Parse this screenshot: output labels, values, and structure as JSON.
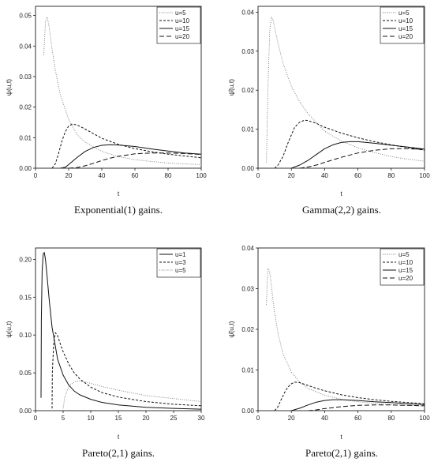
{
  "chart_data": [
    {
      "type": "line",
      "caption": "Exponential(1) gains.",
      "xlabel": "t",
      "ylabel": "ψ(u,t)",
      "xlim": [
        0,
        100
      ],
      "ylim": [
        0,
        0.053
      ],
      "xticks": [
        "0",
        "20",
        "40",
        "60",
        "80",
        "100"
      ],
      "yticks": [
        "0.00",
        "0.01",
        "0.02",
        "0.03",
        "0.04",
        "0.05"
      ],
      "legend": "top-right",
      "series": [
        {
          "name": "u=5",
          "style": "dotted",
          "x": [
            5,
            6,
            7,
            8,
            10,
            12,
            15,
            20,
            25,
            30,
            40,
            50,
            60,
            70,
            80,
            90,
            100
          ],
          "y": [
            0.037,
            0.048,
            0.0495,
            0.047,
            0.039,
            0.032,
            0.024,
            0.016,
            0.011,
            0.0085,
            0.0055,
            0.0038,
            0.0028,
            0.0022,
            0.0017,
            0.0014,
            0.0012
          ]
        },
        {
          "name": "u=10",
          "style": "dashed",
          "x": [
            10,
            12,
            14,
            16,
            18,
            20,
            22,
            25,
            30,
            35,
            40,
            50,
            60,
            70,
            80,
            90,
            100
          ],
          "y": [
            0,
            0.0015,
            0.005,
            0.009,
            0.012,
            0.0138,
            0.0144,
            0.0142,
            0.0128,
            0.0113,
            0.0098,
            0.0078,
            0.0064,
            0.0054,
            0.0046,
            0.004,
            0.0034
          ]
        },
        {
          "name": "u=15",
          "style": "solid",
          "x": [
            15,
            18,
            20,
            25,
            30,
            35,
            40,
            45,
            50,
            60,
            70,
            80,
            90,
            100
          ],
          "y": [
            0,
            0.0003,
            0.0012,
            0.0035,
            0.0055,
            0.0068,
            0.0075,
            0.0077,
            0.0076,
            0.0071,
            0.0063,
            0.0056,
            0.005,
            0.0046
          ]
        },
        {
          "name": "u=20",
          "style": "longdash",
          "x": [
            20,
            25,
            30,
            35,
            40,
            45,
            50,
            60,
            70,
            80,
            90,
            100
          ],
          "y": [
            0,
            0.0002,
            0.0008,
            0.0016,
            0.0025,
            0.0033,
            0.0039,
            0.0047,
            0.005,
            0.005,
            0.0048,
            0.0045
          ]
        }
      ]
    },
    {
      "type": "line",
      "caption": "Gamma(2,2) gains.",
      "xlabel": "t",
      "ylabel": "ψ̂(u,t)",
      "xlim": [
        0,
        100
      ],
      "ylim": [
        0,
        0.0415
      ],
      "xticks": [
        "0",
        "20",
        "40",
        "60",
        "80",
        "100"
      ],
      "yticks": [
        "0.00",
        "0.01",
        "0.02",
        "0.03",
        "0.04"
      ],
      "legend": "top-right",
      "series": [
        {
          "name": "u=5",
          "style": "dotted",
          "x": [
            5,
            6,
            7,
            8,
            9,
            10,
            12,
            15,
            20,
            25,
            30,
            40,
            50,
            60,
            70,
            80,
            90,
            100
          ],
          "y": [
            0.0015,
            0.022,
            0.035,
            0.0388,
            0.038,
            0.036,
            0.032,
            0.027,
            0.021,
            0.017,
            0.014,
            0.0095,
            0.007,
            0.0052,
            0.004,
            0.003,
            0.0023,
            0.0018
          ]
        },
        {
          "name": "u=10",
          "style": "dashed",
          "x": [
            10,
            12,
            15,
            18,
            20,
            22,
            25,
            28,
            30,
            35,
            40,
            50,
            60,
            70,
            80,
            90,
            100
          ],
          "y": [
            0,
            0.0008,
            0.003,
            0.0065,
            0.0085,
            0.0105,
            0.0118,
            0.0123,
            0.0122,
            0.0115,
            0.0105,
            0.009,
            0.0078,
            0.0068,
            0.006,
            0.0053,
            0.0046
          ]
        },
        {
          "name": "u=15",
          "style": "solid",
          "x": [
            20,
            25,
            30,
            35,
            40,
            45,
            50,
            55,
            60,
            70,
            80,
            90,
            100
          ],
          "y": [
            0,
            0.0008,
            0.002,
            0.0035,
            0.005,
            0.006,
            0.0066,
            0.0068,
            0.0068,
            0.0064,
            0.0059,
            0.0054,
            0.0049
          ]
        },
        {
          "name": "u=20",
          "style": "longdash",
          "x": [
            25,
            30,
            35,
            40,
            50,
            60,
            70,
            80,
            90,
            100
          ],
          "y": [
            0,
            0.0003,
            0.0008,
            0.0015,
            0.0028,
            0.0039,
            0.0046,
            0.005,
            0.005,
            0.0048
          ]
        }
      ]
    },
    {
      "type": "line",
      "caption": "Pareto(2,1) gains.",
      "xlabel": "t",
      "ylabel": "ψ(u,t)",
      "xlim": [
        0,
        30
      ],
      "ylim": [
        0,
        0.215
      ],
      "xticks": [
        "0",
        "5",
        "10",
        "15",
        "20",
        "25",
        "30"
      ],
      "yticks": [
        "0.00",
        "0.05",
        "0.10",
        "0.15",
        "0.20"
      ],
      "legend": "top-right",
      "series": [
        {
          "name": "u=1",
          "style": "solid",
          "x": [
            1.0,
            1.05,
            1.2,
            1.4,
            1.6,
            1.8,
            2.0,
            2.5,
            3,
            4,
            5,
            6,
            7,
            8,
            10,
            12,
            15,
            20,
            25,
            30
          ],
          "y": [
            0.017,
            0.12,
            0.185,
            0.207,
            0.209,
            0.2,
            0.185,
            0.145,
            0.11,
            0.068,
            0.047,
            0.034,
            0.026,
            0.021,
            0.015,
            0.011,
            0.0075,
            0.0045,
            0.003,
            0.002
          ]
        },
        {
          "name": "u=3",
          "style": "dashed",
          "x": [
            3.0,
            3.05,
            3.3,
            3.6,
            4,
            4.5,
            5,
            6,
            7,
            8,
            10,
            12,
            15,
            20,
            25,
            30
          ],
          "y": [
            0.003,
            0.05,
            0.09,
            0.103,
            0.099,
            0.088,
            0.078,
            0.062,
            0.05,
            0.042,
            0.031,
            0.024,
            0.018,
            0.012,
            0.0085,
            0.0065
          ]
        },
        {
          "name": "u=5",
          "style": "dotted",
          "x": [
            5.0,
            5.3,
            5.8,
            6.3,
            7,
            7.5,
            8,
            9,
            10,
            12,
            15,
            20,
            25,
            30
          ],
          "y": [
            0.003,
            0.018,
            0.028,
            0.034,
            0.038,
            0.039,
            0.039,
            0.038,
            0.036,
            0.032,
            0.027,
            0.02,
            0.016,
            0.012
          ]
        }
      ]
    },
    {
      "type": "line",
      "caption": "Pareto(2,1) gains.",
      "xlabel": "t",
      "ylabel": "ψ̂(u,t)",
      "xlim": [
        0,
        100
      ],
      "ylim": [
        0,
        0.04
      ],
      "xticks": [
        "0",
        "20",
        "40",
        "60",
        "80",
        "100"
      ],
      "yticks": [
        "0.00",
        "0.01",
        "0.02",
        "0.03",
        "0.04"
      ],
      "legend": "top-right",
      "series": [
        {
          "name": "u=5",
          "style": "dotted",
          "x": [
            5,
            5.5,
            6,
            7,
            8,
            9,
            10,
            12,
            15,
            20,
            25,
            30,
            40,
            50,
            60,
            70,
            80,
            90,
            100
          ],
          "y": [
            0.026,
            0.032,
            0.035,
            0.034,
            0.031,
            0.027,
            0.024,
            0.019,
            0.014,
            0.0095,
            0.007,
            0.0055,
            0.0038,
            0.0028,
            0.0022,
            0.0018,
            0.0015,
            0.0013,
            0.0011
          ]
        },
        {
          "name": "u=10",
          "style": "dashed",
          "x": [
            10,
            12,
            14,
            16,
            18,
            20,
            22,
            25,
            30,
            35,
            40,
            50,
            60,
            70,
            80,
            90,
            100
          ],
          "y": [
            0,
            0.001,
            0.0028,
            0.0045,
            0.0058,
            0.0066,
            0.007,
            0.0069,
            0.0062,
            0.0055,
            0.0049,
            0.0039,
            0.0032,
            0.0027,
            0.0023,
            0.002,
            0.0017
          ]
        },
        {
          "name": "u=15",
          "style": "solid",
          "x": [
            20,
            25,
            30,
            35,
            40,
            45,
            50,
            60,
            70,
            80,
            90,
            100
          ],
          "y": [
            0,
            0.0006,
            0.0014,
            0.0021,
            0.0025,
            0.0027,
            0.0027,
            0.0025,
            0.0022,
            0.002,
            0.0017,
            0.0015
          ]
        },
        {
          "name": "u=20",
          "style": "longdash",
          "x": [
            30,
            35,
            40,
            50,
            60,
            70,
            80,
            90,
            100
          ],
          "y": [
            0,
            0.0002,
            0.0005,
            0.001,
            0.0013,
            0.0014,
            0.0014,
            0.0013,
            0.0012
          ]
        }
      ]
    }
  ]
}
